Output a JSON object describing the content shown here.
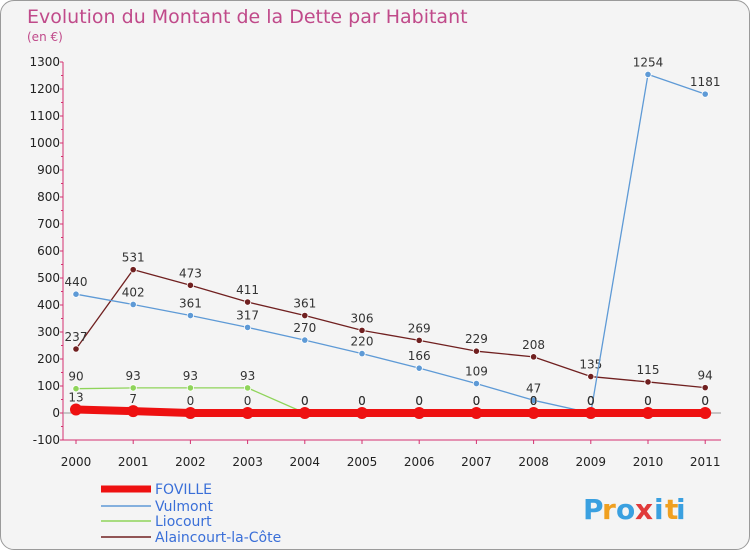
{
  "chart_data": {
    "type": "line",
    "title": "Evolution du Montant de la Dette par Habitant",
    "subtitle": "(en €)",
    "x": [
      "2000",
      "2001",
      "2002",
      "2003",
      "2004",
      "2005",
      "2006",
      "2007",
      "2008",
      "2009",
      "2010",
      "2011"
    ],
    "ylim": [
      -100,
      1300
    ],
    "yticks": [
      -100,
      0,
      100,
      200,
      300,
      400,
      500,
      600,
      700,
      800,
      900,
      1000,
      1100,
      1200,
      1300
    ],
    "grid": false,
    "legend_position": "bottom-left",
    "series": [
      {
        "name": "FOVILLE",
        "color": "#ee1111",
        "values": [
          13,
          7,
          0,
          0,
          0,
          0,
          0,
          0,
          0,
          0,
          0,
          0
        ]
      },
      {
        "name": "Vulmont",
        "color": "#5e9ad6",
        "values": [
          440,
          402,
          361,
          317,
          270,
          220,
          166,
          109,
          47,
          0,
          1254,
          1181
        ]
      },
      {
        "name": "Liocourt",
        "color": "#8fd45a",
        "values": [
          90,
          93,
          93,
          93,
          0,
          0,
          0,
          0,
          0,
          0,
          0,
          0
        ]
      },
      {
        "name": "Alaincourt-la-Côte",
        "color": "#702020",
        "values": [
          237,
          531,
          473,
          411,
          361,
          306,
          269,
          229,
          208,
          135,
          115,
          94
        ]
      }
    ]
  },
  "logo": {
    "letters": [
      "P",
      "r",
      "o",
      "x",
      "i",
      "t",
      "i"
    ],
    "colors": [
      "#3aa0e0",
      "#f0a020",
      "#3aa0e0",
      "#e03a3a",
      "#3aa0e0",
      "#f0a020",
      "#3aa0e0"
    ]
  }
}
